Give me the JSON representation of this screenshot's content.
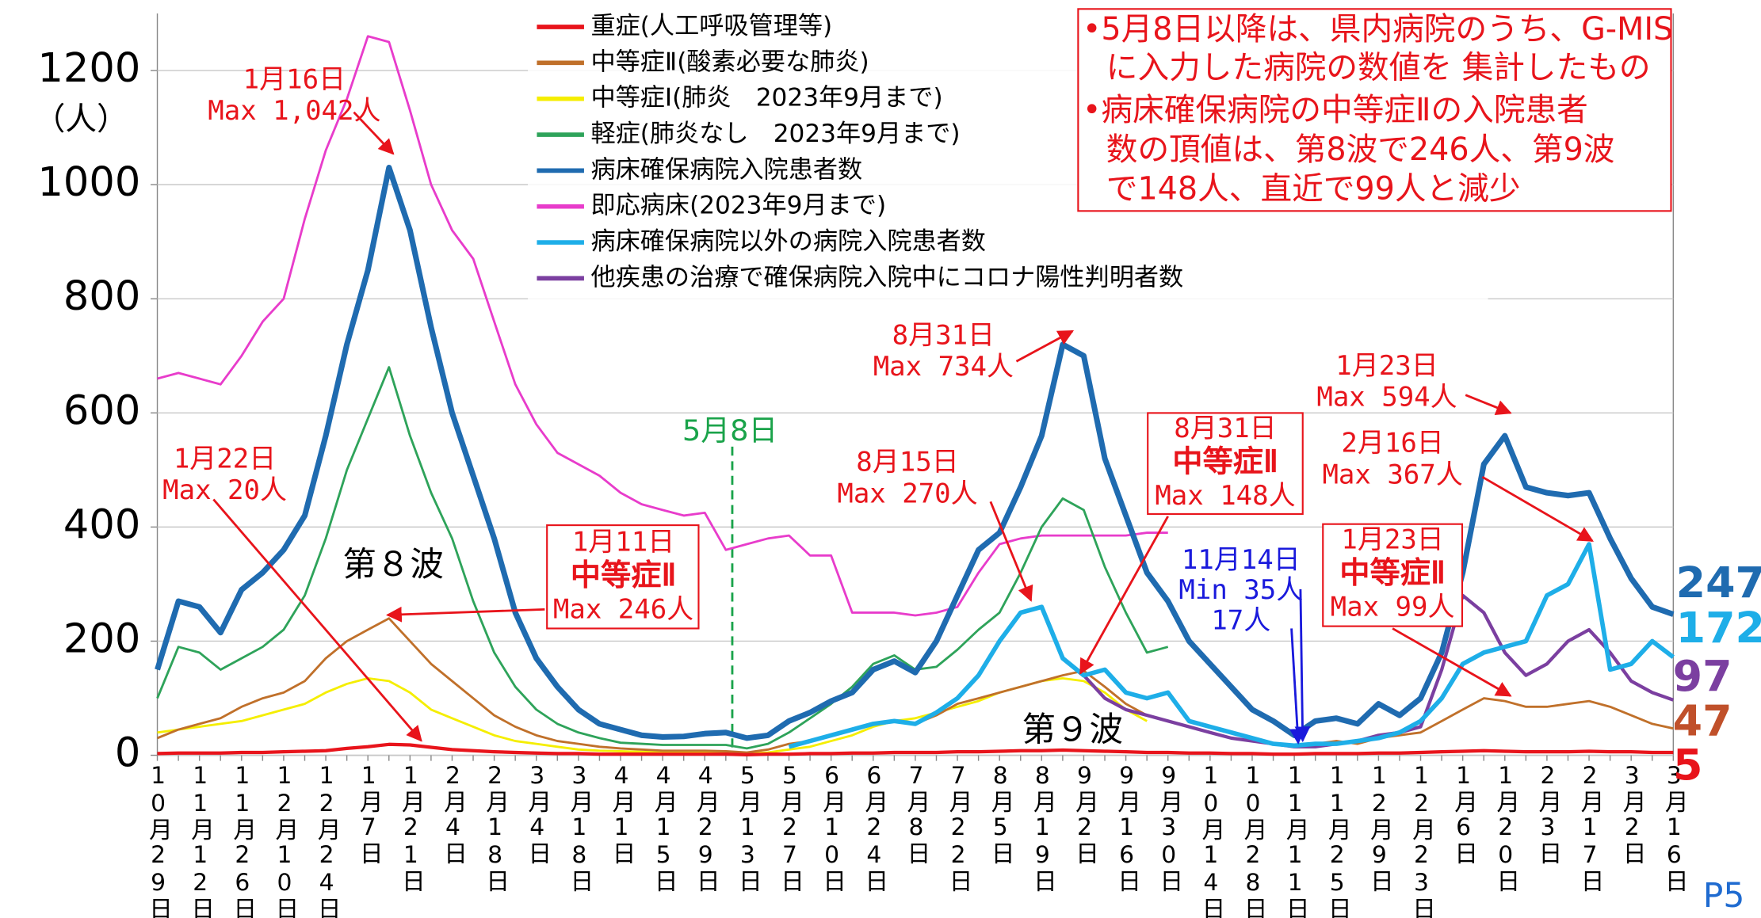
{
  "chart_data": {
    "type": "line",
    "y_unit": "（人）",
    "page_label": "P5",
    "ylim": [
      0,
      1300
    ],
    "yticks": [
      0,
      200,
      400,
      600,
      800,
      1000,
      1200
    ],
    "grid": true,
    "categories": [
      "10月29日",
      null,
      "11月12日",
      null,
      "11月26日",
      null,
      "12月10日",
      null,
      "12月24日",
      null,
      "1月7日",
      null,
      "1月21日",
      null,
      "2月4日",
      null,
      "2月18日",
      null,
      "3月4日",
      null,
      "3月18日",
      null,
      "4月1日",
      null,
      "4月15日",
      null,
      "4月29日",
      null,
      "5月13日",
      null,
      "5月27日",
      null,
      "6月10日",
      null,
      "6月24日",
      null,
      "7月8日",
      null,
      "7月22日",
      null,
      "8月5日",
      null,
      "8月19日",
      null,
      "9月2日",
      null,
      "9月16日",
      null,
      "9月30日",
      null,
      "10月14日",
      null,
      "10月28日",
      null,
      "11月11日",
      null,
      "11月25日",
      null,
      "12月9日",
      null,
      "12月23日",
      null,
      "1月6日",
      null,
      "1月20日",
      null,
      "2月3日",
      null,
      "2月17日",
      null,
      "3月2日",
      null,
      "3月16日"
    ],
    "series": [
      {
        "name": "重症(人工呼吸管理等)",
        "color": "#e8141b",
        "width": 3,
        "values": [
          3,
          4,
          4,
          4,
          5,
          5,
          6,
          7,
          8,
          12,
          15,
          19,
          18,
          14,
          10,
          8,
          6,
          5,
          4,
          3,
          3,
          2,
          2,
          2,
          2,
          2,
          2,
          2,
          1,
          2,
          2,
          3,
          3,
          4,
          4,
          5,
          5,
          5,
          6,
          6,
          7,
          8,
          8,
          9,
          8,
          7,
          6,
          5,
          5,
          4,
          4,
          3,
          3,
          2,
          2,
          3,
          3,
          3,
          4,
          4,
          5,
          6,
          7,
          8,
          7,
          6,
          6,
          6,
          7,
          6,
          6,
          5,
          5
        ]
      },
      {
        "name": "中等症Ⅱ(酸素必要な肺炎)",
        "color": "#c0702a",
        "width": 2,
        "values": [
          30,
          45,
          55,
          65,
          85,
          100,
          110,
          130,
          170,
          200,
          220,
          240,
          200,
          160,
          130,
          100,
          70,
          50,
          35,
          25,
          20,
          15,
          12,
          10,
          8,
          8,
          8,
          7,
          5,
          10,
          20,
          25,
          35,
          45,
          55,
          60,
          55,
          70,
          90,
          100,
          110,
          120,
          130,
          140,
          148,
          120,
          90,
          70,
          60,
          50,
          40,
          30,
          25,
          20,
          15,
          20,
          25,
          20,
          30,
          35,
          40,
          60,
          80,
          100,
          95,
          85,
          85,
          90,
          95,
          85,
          70,
          55,
          47
        ]
      },
      {
        "name": "中等症Ⅰ(肺炎　2023年9月まで)",
        "color": "#f5ee00",
        "width": 2,
        "values": [
          40,
          45,
          50,
          55,
          60,
          70,
          80,
          90,
          110,
          125,
          135,
          130,
          110,
          80,
          65,
          50,
          35,
          25,
          20,
          15,
          10,
          8,
          7,
          6,
          5,
          5,
          5,
          5,
          3,
          5,
          10,
          15,
          25,
          35,
          50,
          60,
          65,
          75,
          85,
          95,
          110,
          120,
          130,
          135,
          130,
          110,
          80,
          60,
          null,
          null,
          null,
          null,
          null,
          null,
          null,
          null,
          null,
          null,
          null,
          null,
          null,
          null,
          null,
          null,
          null,
          null,
          null,
          null,
          null,
          null,
          null,
          null,
          null
        ]
      },
      {
        "name": "軽症(肺炎なし　2023年9月まで)",
        "color": "#2ea35a",
        "width": 2,
        "values": [
          100,
          190,
          180,
          150,
          170,
          190,
          220,
          280,
          380,
          500,
          590,
          680,
          560,
          460,
          380,
          270,
          180,
          120,
          80,
          55,
          40,
          30,
          22,
          20,
          18,
          18,
          18,
          18,
          12,
          20,
          40,
          65,
          90,
          120,
          160,
          175,
          150,
          155,
          185,
          220,
          250,
          320,
          400,
          450,
          430,
          330,
          250,
          180,
          190,
          null,
          null,
          null,
          null,
          null,
          null,
          null,
          null,
          null,
          null,
          null,
          null,
          null,
          null,
          null,
          null,
          null,
          null,
          null,
          null,
          null,
          null,
          null,
          null
        ]
      },
      {
        "name": "病床確保病院入院患者数",
        "color": "#1f6bb0",
        "width": 5,
        "values": [
          150,
          270,
          260,
          215,
          290,
          320,
          360,
          420,
          560,
          720,
          850,
          1030,
          920,
          750,
          600,
          490,
          380,
          250,
          170,
          120,
          80,
          55,
          45,
          35,
          32,
          33,
          38,
          40,
          30,
          35,
          60,
          75,
          95,
          110,
          150,
          165,
          145,
          200,
          280,
          360,
          390,
          470,
          560,
          720,
          700,
          520,
          420,
          320,
          270,
          200,
          160,
          120,
          80,
          60,
          35,
          60,
          65,
          55,
          90,
          70,
          100,
          180,
          320,
          510,
          560,
          470,
          460,
          455,
          460,
          380,
          310,
          260,
          247
        ]
      },
      {
        "name": "即応病床(2023年9月まで)",
        "color": "#e83ccb",
        "width": 2,
        "values": [
          660,
          670,
          660,
          650,
          700,
          760,
          800,
          940,
          1060,
          1150,
          1260,
          1250,
          1130,
          1000,
          920,
          870,
          760,
          650,
          580,
          530,
          510,
          490,
          460,
          440,
          430,
          420,
          425,
          360,
          370,
          380,
          385,
          350,
          350,
          250,
          250,
          250,
          245,
          250,
          260,
          320,
          370,
          380,
          385,
          385,
          385,
          385,
          385,
          390,
          390,
          null,
          null,
          null,
          null,
          null,
          null,
          null,
          null,
          null,
          null,
          null,
          null,
          null,
          null,
          null,
          null,
          null,
          null,
          null,
          null,
          null,
          null,
          null,
          null
        ]
      },
      {
        "name": "病床確保病院以外の病院入院患者数",
        "color": "#1eaee8",
        "width": 4,
        "values": [
          null,
          null,
          null,
          null,
          null,
          null,
          null,
          null,
          null,
          null,
          null,
          null,
          null,
          null,
          null,
          null,
          null,
          null,
          null,
          null,
          null,
          null,
          null,
          null,
          null,
          null,
          null,
          null,
          null,
          null,
          15,
          25,
          35,
          45,
          55,
          60,
          55,
          75,
          100,
          140,
          200,
          250,
          260,
          170,
          140,
          150,
          110,
          100,
          110,
          60,
          50,
          40,
          30,
          20,
          17,
          20,
          20,
          25,
          30,
          40,
          60,
          100,
          160,
          180,
          190,
          200,
          280,
          300,
          370,
          150,
          160,
          200,
          172
        ]
      },
      {
        "name": "他疾患の治療で確保病院入院中にコロナ陽性判明者数",
        "color": "#7b3fa0",
        "width": 3,
        "values": [
          null,
          null,
          null,
          null,
          null,
          null,
          null,
          null,
          null,
          null,
          null,
          null,
          null,
          null,
          null,
          null,
          null,
          null,
          null,
          null,
          null,
          null,
          null,
          null,
          null,
          null,
          null,
          null,
          null,
          null,
          null,
          null,
          null,
          null,
          null,
          null,
          null,
          null,
          null,
          null,
          null,
          null,
          null,
          null,
          140,
          100,
          80,
          70,
          60,
          50,
          40,
          30,
          25,
          20,
          15,
          15,
          20,
          25,
          35,
          40,
          50,
          150,
          280,
          250,
          180,
          140,
          160,
          200,
          220,
          180,
          130,
          110,
          97
        ]
      }
    ],
    "end_labels": [
      {
        "label": "247",
        "color": "#1f6bb0"
      },
      {
        "label": "172",
        "color": "#1eaee8"
      },
      {
        "label": "97",
        "color": "#7b3fa0"
      },
      {
        "label": "47",
        "color": "#c0502a"
      },
      {
        "label": "5",
        "color": "#e8141b"
      }
    ],
    "annotations": [
      {
        "lines": [
          "1月16日",
          "Max 1,042人"
        ],
        "color": "#e8141b"
      },
      {
        "lines": [
          "1月22日",
          "Max 20人"
        ],
        "color": "#e8141b"
      },
      {
        "lines": [
          "1月11日",
          "中等症Ⅱ",
          "Max 246人"
        ],
        "color": "#e8141b",
        "boxed": true
      },
      {
        "lines": [
          "8月31日",
          "Max 734人"
        ],
        "color": "#e8141b"
      },
      {
        "lines": [
          "8月15日",
          "Max 270人"
        ],
        "color": "#e8141b"
      },
      {
        "lines": [
          "8月31日",
          "中等症Ⅱ",
          "Max 148人"
        ],
        "color": "#e8141b",
        "boxed": true
      },
      {
        "lines": [
          "11月14日",
          "Min 35人",
          "17人"
        ],
        "color": "#1a1adc"
      },
      {
        "lines": [
          "1月23日",
          "Max 594人"
        ],
        "color": "#e8141b"
      },
      {
        "lines": [
          "2月16日",
          "Max 367人"
        ],
        "color": "#e8141b"
      },
      {
        "lines": [
          "1月23日",
          "中等症Ⅱ",
          "Max 99人"
        ],
        "color": "#e8141b",
        "boxed": true
      }
    ],
    "wave_labels": [
      "第８波",
      "第９波"
    ],
    "marker": {
      "label": "5月8日",
      "color": "#1aa34a"
    },
    "notes": [
      "•5月8日以降は、県内病院のうち、G-MIS",
      "に入力した病院の数値を 集計したもの",
      "•病床確保病院の中等症Ⅱの入院患者",
      "数の頂値は、第8波で246人、第9波",
      "で148人、直近で99人と減少"
    ]
  }
}
